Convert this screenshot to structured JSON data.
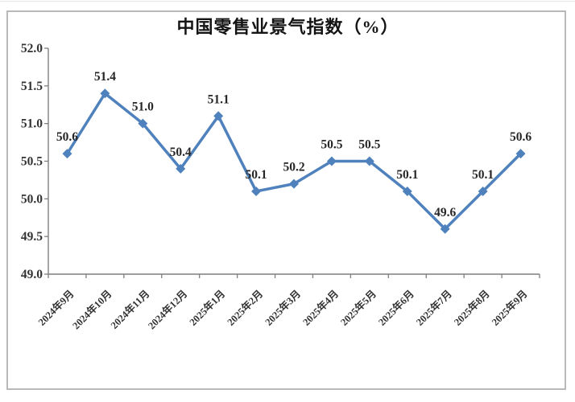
{
  "page": {
    "background_color": "#ffffff",
    "frame_border_color": "#b9b9b9"
  },
  "chart_data": {
    "type": "line",
    "title": "中国零售业景气指数（%）",
    "categories": [
      "2024年9月",
      "2024年10月",
      "2024年11月",
      "2024年12月",
      "2025年1月",
      "2025年2月",
      "2025年3月",
      "2025年4月",
      "2025年5月",
      "2025年6月",
      "2025年7月",
      "2025年8月",
      "2025年9月"
    ],
    "values": [
      50.6,
      51.4,
      51.0,
      50.4,
      51.1,
      50.1,
      50.2,
      50.5,
      50.5,
      50.1,
      49.6,
      50.1,
      50.6
    ],
    "data_labels": [
      "50.6",
      "51.4",
      "51.0",
      "50.4",
      "51.1",
      "50.1",
      "50.2",
      "50.5",
      "50.5",
      "50.1",
      "49.6",
      "50.1",
      "50.6"
    ],
    "xlabel": "",
    "ylabel": "",
    "ylim": [
      49.0,
      52.0
    ],
    "y_tick_labels": [
      "52.0",
      "51.5",
      "51.0",
      "50.5",
      "50.0",
      "49.5",
      "49.0"
    ],
    "grid": "off",
    "legend": "none",
    "marker": "diamond",
    "line_color": "#4F81BD",
    "axis_color": "#7f7f7f",
    "tick_label_color": "#333333",
    "data_label_color": "#262626"
  }
}
